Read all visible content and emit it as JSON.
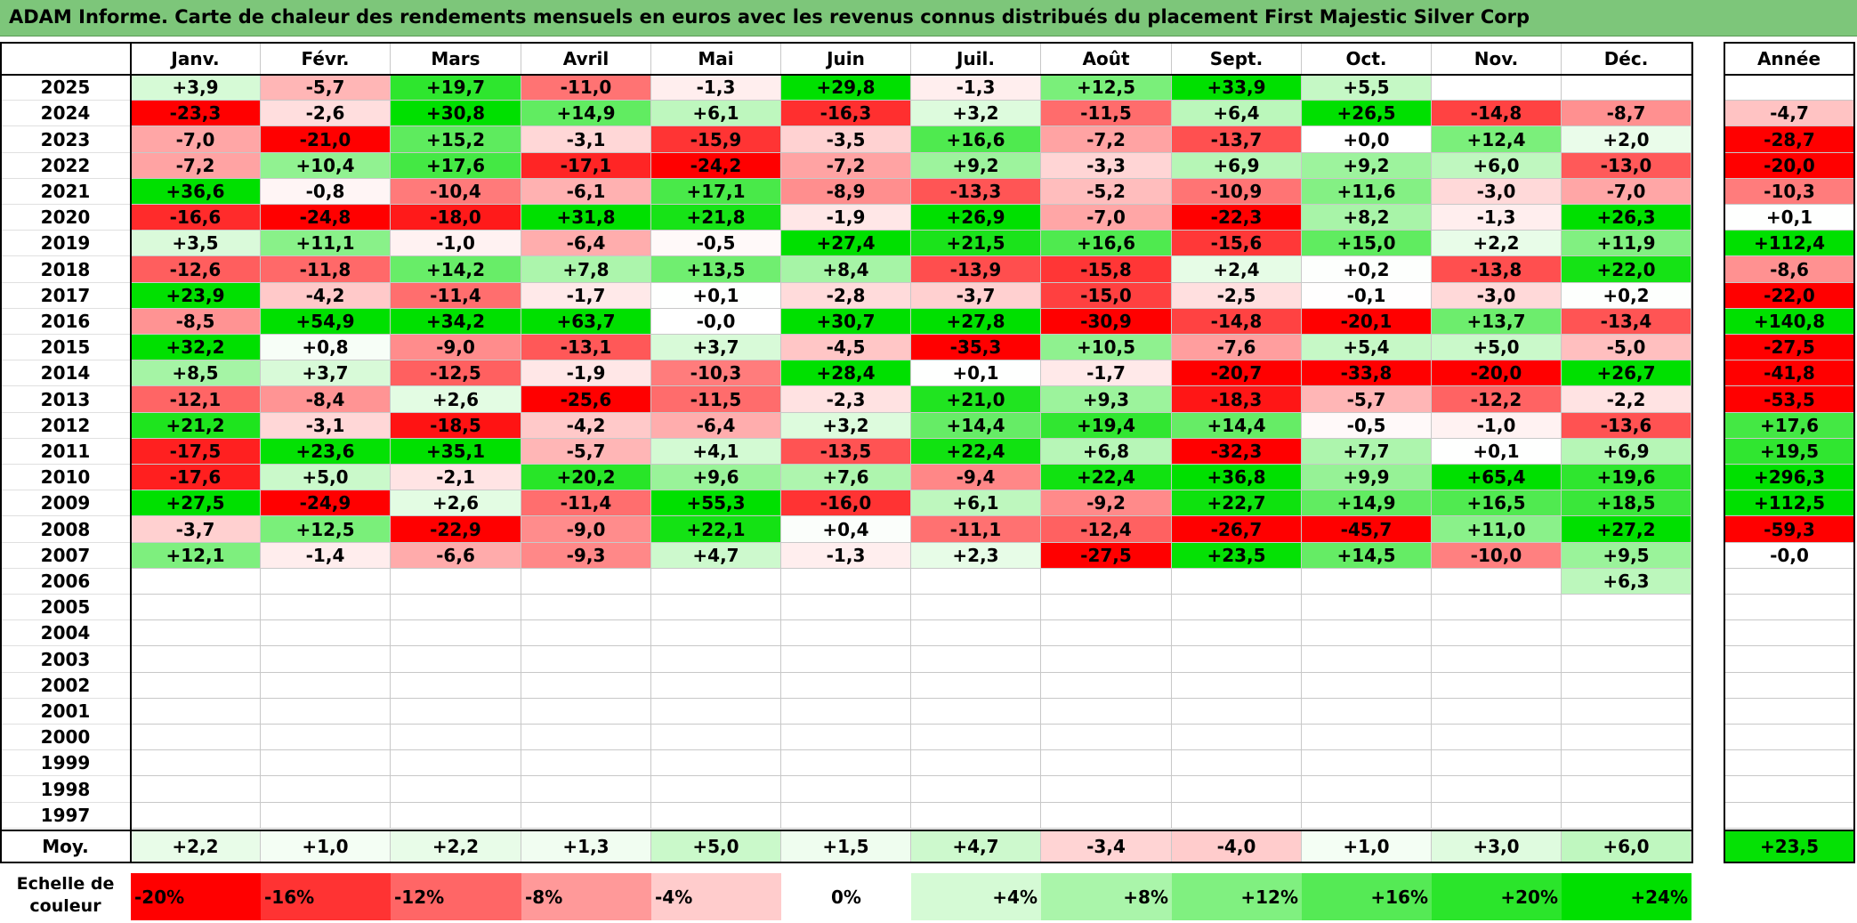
{
  "title": "ADAM Informe. Carte de chaleur des rendements mensuels en euros avec les revenus connus distribués du placement First Majestic Silver Corp",
  "months": [
    "Janv.",
    "Févr.",
    "Mars",
    "Avril",
    "Mai",
    "Juin",
    "Juil.",
    "Août",
    "Sept.",
    "Oct.",
    "Nov.",
    "Déc."
  ],
  "annual_header": "Année",
  "avg_label": "Moy.",
  "scale_label": "Echelle de couleur",
  "chart_data": {
    "type": "heatmap",
    "title": "ADAM Informe. Carte de chaleur des rendements mensuels en euros avec les revenus connus distribués du placement First Majestic Silver Corp",
    "columns": [
      "Janv.",
      "Févr.",
      "Mars",
      "Avril",
      "Mai",
      "Juin",
      "Juil.",
      "Août",
      "Sept.",
      "Oct.",
      "Nov.",
      "Déc."
    ],
    "rows": [
      {
        "year": "2025",
        "values": [
          "+3,9",
          "-5,7",
          "+19,7",
          "-11,0",
          "-1,3",
          "+29,8",
          "-1,3",
          "+12,5",
          "+33,9",
          "+5,5",
          "",
          ""
        ],
        "annual": ""
      },
      {
        "year": "2024",
        "values": [
          "-23,3",
          "-2,6",
          "+30,8",
          "+14,9",
          "+6,1",
          "-16,3",
          "+3,2",
          "-11,5",
          "+6,4",
          "+26,5",
          "-14,8",
          "-8,7"
        ],
        "annual": "-4,7"
      },
      {
        "year": "2023",
        "values": [
          "-7,0",
          "-21,0",
          "+15,2",
          "-3,1",
          "-15,9",
          "-3,5",
          "+16,6",
          "-7,2",
          "-13,7",
          "+0,0",
          "+12,4",
          "+2,0"
        ],
        "annual": "-28,7"
      },
      {
        "year": "2022",
        "values": [
          "-7,2",
          "+10,4",
          "+17,6",
          "-17,1",
          "-24,2",
          "-7,2",
          "+9,2",
          "-3,3",
          "+6,9",
          "+9,2",
          "+6,0",
          "-13,0"
        ],
        "annual": "-20,0"
      },
      {
        "year": "2021",
        "values": [
          "+36,6",
          "-0,8",
          "-10,4",
          "-6,1",
          "+17,1",
          "-8,9",
          "-13,3",
          "-5,2",
          "-10,9",
          "+11,6",
          "-3,0",
          "-7,0"
        ],
        "annual": "-10,3"
      },
      {
        "year": "2020",
        "values": [
          "-16,6",
          "-24,8",
          "-18,0",
          "+31,8",
          "+21,8",
          "-1,9",
          "+26,9",
          "-7,0",
          "-22,3",
          "+8,2",
          "-1,3",
          "+26,3"
        ],
        "annual": "+0,1"
      },
      {
        "year": "2019",
        "values": [
          "+3,5",
          "+11,1",
          "-1,0",
          "-6,4",
          "-0,5",
          "+27,4",
          "+21,5",
          "+16,6",
          "-15,6",
          "+15,0",
          "+2,2",
          "+11,9"
        ],
        "annual": "+112,4"
      },
      {
        "year": "2018",
        "values": [
          "-12,6",
          "-11,8",
          "+14,2",
          "+7,8",
          "+13,5",
          "+8,4",
          "-13,9",
          "-15,8",
          "+2,4",
          "+0,2",
          "-13,8",
          "+22,0"
        ],
        "annual": "-8,6"
      },
      {
        "year": "2017",
        "values": [
          "+23,9",
          "-4,2",
          "-11,4",
          "-1,7",
          "+0,1",
          "-2,8",
          "-3,7",
          "-15,0",
          "-2,5",
          "-0,1",
          "-3,0",
          "+0,2"
        ],
        "annual": "-22,0"
      },
      {
        "year": "2016",
        "values": [
          "-8,5",
          "+54,9",
          "+34,2",
          "+63,7",
          "-0,0",
          "+30,7",
          "+27,8",
          "-30,9",
          "-14,8",
          "-20,1",
          "+13,7",
          "-13,4"
        ],
        "annual": "+140,8"
      },
      {
        "year": "2015",
        "values": [
          "+32,2",
          "+0,8",
          "-9,0",
          "-13,1",
          "+3,7",
          "-4,5",
          "-35,3",
          "+10,5",
          "-7,6",
          "+5,4",
          "+5,0",
          "-5,0"
        ],
        "annual": "-27,5"
      },
      {
        "year": "2014",
        "values": [
          "+8,5",
          "+3,7",
          "-12,5",
          "-1,9",
          "-10,3",
          "+28,4",
          "+0,1",
          "-1,7",
          "-20,7",
          "-33,8",
          "-20,0",
          "+26,7"
        ],
        "annual": "-41,8"
      },
      {
        "year": "2013",
        "values": [
          "-12,1",
          "-8,4",
          "+2,6",
          "-25,6",
          "-11,5",
          "-2,3",
          "+21,0",
          "+9,3",
          "-18,3",
          "-5,7",
          "-12,2",
          "-2,2"
        ],
        "annual": "-53,5"
      },
      {
        "year": "2012",
        "values": [
          "+21,2",
          "-3,1",
          "-18,5",
          "-4,2",
          "-6,4",
          "+3,2",
          "+14,4",
          "+19,4",
          "+14,4",
          "-0,5",
          "-1,0",
          "-13,6"
        ],
        "annual": "+17,6"
      },
      {
        "year": "2011",
        "values": [
          "-17,5",
          "+23,6",
          "+35,1",
          "-5,7",
          "+4,1",
          "-13,5",
          "+22,4",
          "+6,8",
          "-32,3",
          "+7,7",
          "+0,1",
          "+6,9"
        ],
        "annual": "+19,5"
      },
      {
        "year": "2010",
        "values": [
          "-17,6",
          "+5,0",
          "-2,1",
          "+20,2",
          "+9,6",
          "+7,6",
          "-9,4",
          "+22,4",
          "+36,8",
          "+9,9",
          "+65,4",
          "+19,6"
        ],
        "annual": "+296,3"
      },
      {
        "year": "2009",
        "values": [
          "+27,5",
          "-24,9",
          "+2,6",
          "-11,4",
          "+55,3",
          "-16,0",
          "+6,1",
          "-9,2",
          "+22,7",
          "+14,9",
          "+16,5",
          "+18,5"
        ],
        "annual": "+112,5"
      },
      {
        "year": "2008",
        "values": [
          "-3,7",
          "+12,5",
          "-22,9",
          "-9,0",
          "+22,1",
          "+0,4",
          "-11,1",
          "-12,4",
          "-26,7",
          "-45,7",
          "+11,0",
          "+27,2"
        ],
        "annual": "-59,3"
      },
      {
        "year": "2007",
        "values": [
          "+12,1",
          "-1,4",
          "-6,6",
          "-9,3",
          "+4,7",
          "-1,3",
          "+2,3",
          "-27,5",
          "+23,5",
          "+14,5",
          "-10,0",
          "+9,5"
        ],
        "annual": "-0,0"
      },
      {
        "year": "2006",
        "values": [
          "",
          "",
          "",
          "",
          "",
          "",
          "",
          "",
          "",
          "",
          "",
          "+6,3"
        ],
        "annual": ""
      },
      {
        "year": "2005",
        "values": [
          "",
          "",
          "",
          "",
          "",
          "",
          "",
          "",
          "",
          "",
          "",
          ""
        ],
        "annual": ""
      },
      {
        "year": "2004",
        "values": [
          "",
          "",
          "",
          "",
          "",
          "",
          "",
          "",
          "",
          "",
          "",
          ""
        ],
        "annual": ""
      },
      {
        "year": "2003",
        "values": [
          "",
          "",
          "",
          "",
          "",
          "",
          "",
          "",
          "",
          "",
          "",
          ""
        ],
        "annual": ""
      },
      {
        "year": "2002",
        "values": [
          "",
          "",
          "",
          "",
          "",
          "",
          "",
          "",
          "",
          "",
          "",
          ""
        ],
        "annual": ""
      },
      {
        "year": "2001",
        "values": [
          "",
          "",
          "",
          "",
          "",
          "",
          "",
          "",
          "",
          "",
          "",
          ""
        ],
        "annual": ""
      },
      {
        "year": "2000",
        "values": [
          "",
          "",
          "",
          "",
          "",
          "",
          "",
          "",
          "",
          "",
          "",
          ""
        ],
        "annual": ""
      },
      {
        "year": "1999",
        "values": [
          "",
          "",
          "",
          "",
          "",
          "",
          "",
          "",
          "",
          "",
          "",
          ""
        ],
        "annual": ""
      },
      {
        "year": "1998",
        "values": [
          "",
          "",
          "",
          "",
          "",
          "",
          "",
          "",
          "",
          "",
          "",
          ""
        ],
        "annual": ""
      },
      {
        "year": "1997",
        "values": [
          "",
          "",
          "",
          "",
          "",
          "",
          "",
          "",
          "",
          "",
          "",
          ""
        ],
        "annual": ""
      }
    ],
    "average": {
      "values": [
        "+2,2",
        "+1,0",
        "+2,2",
        "+1,3",
        "+5,0",
        "+1,5",
        "+4,7",
        "-3,4",
        "-4,0",
        "+1,0",
        "+3,0",
        "+6,0"
      ],
      "annual": "+23,5"
    },
    "color_scale": [
      "-20%",
      "-16%",
      "-12%",
      "-8%",
      "-4%",
      "0%",
      "+4%",
      "+8%",
      "+12%",
      "+16%",
      "+20%",
      "+24%"
    ],
    "colors": {
      "negative_max": "#ff0000",
      "neutral": "#ffffff",
      "positive_max": "#00e000"
    }
  }
}
